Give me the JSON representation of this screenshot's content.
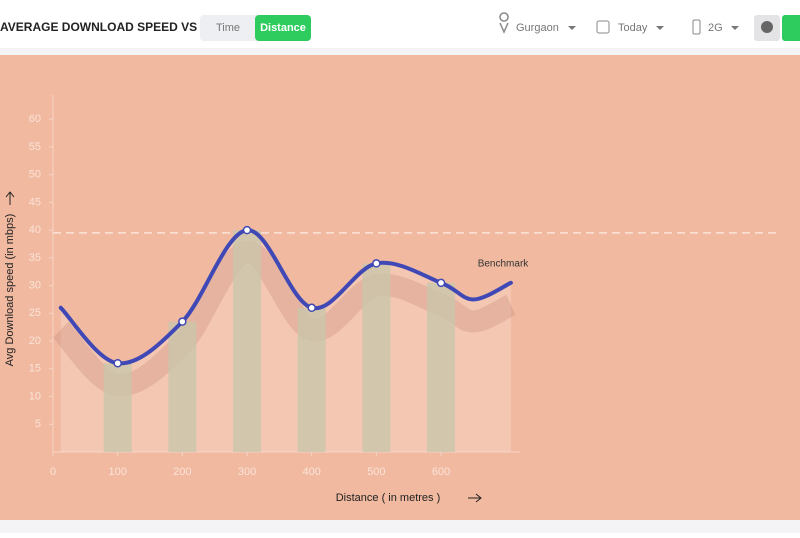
{
  "header": {
    "title": "AVERAGE DOWNLOAD SPEED VS",
    "toggle": [
      "Time",
      "Distance"
    ],
    "filters": [
      "Gurgaon",
      "Today",
      "2G"
    ]
  },
  "chart_data": {
    "type": "line",
    "x": [
      12,
      100,
      200,
      300,
      400,
      500,
      600,
      650,
      708
    ],
    "values": [
      26,
      16,
      23.5,
      40,
      26,
      34,
      30.5,
      27.5,
      30.5
    ],
    "color": "#3f48b5",
    "bar_color": "#c9c6ab",
    "xlabel": "Distance ( in metres )",
    "ylabel": "Avg Download speed (in mbps)",
    "xlim": [
      0,
      1155
    ],
    "ylim": [
      0,
      64
    ],
    "xticks": [
      0,
      100,
      200,
      300,
      400,
      500,
      600
    ],
    "yticks": [
      5,
      10,
      15,
      20,
      25,
      30,
      35,
      40,
      45,
      50,
      55,
      60
    ],
    "benchmark": {
      "value": 39.5,
      "label": "Benchmark"
    },
    "grid": false
  }
}
